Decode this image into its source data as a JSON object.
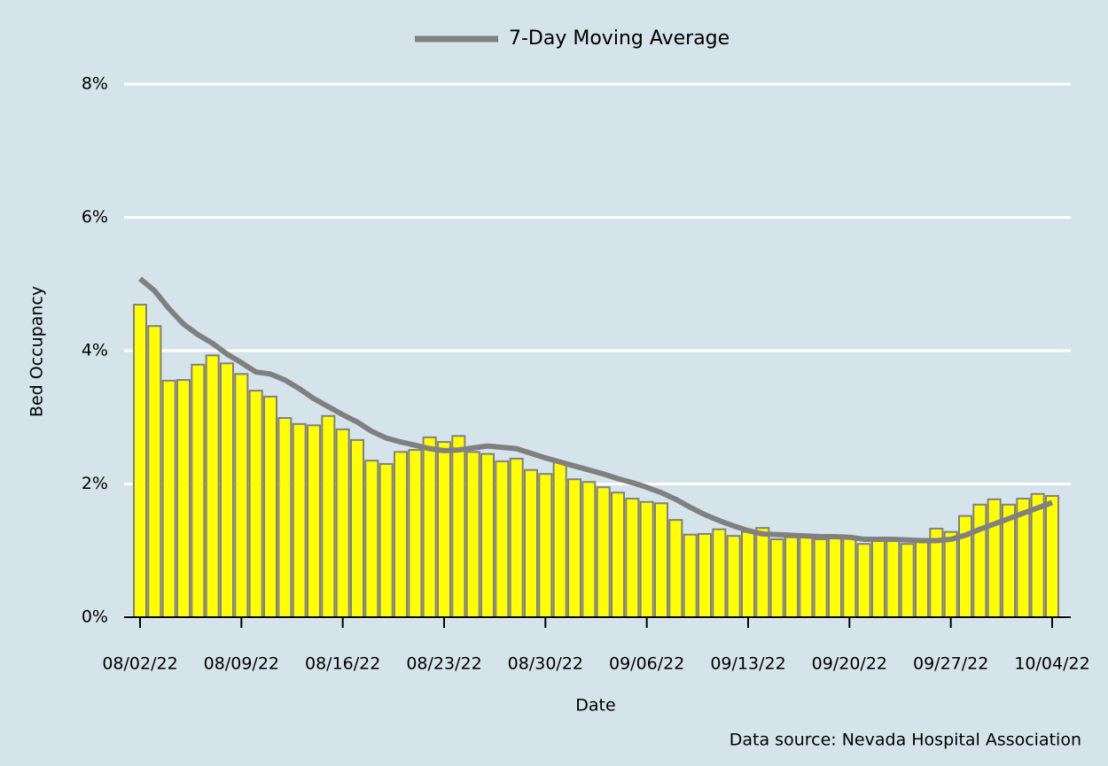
{
  "chart_data": {
    "type": "bar",
    "x_label": "Date",
    "y_label": "Bed Occupancy",
    "source": "Data source: Nevada Hospital Association",
    "x": [
      "08/02/22",
      "08/03/22",
      "08/04/22",
      "08/05/22",
      "08/06/22",
      "08/07/22",
      "08/08/22",
      "08/09/22",
      "08/10/22",
      "08/11/22",
      "08/12/22",
      "08/13/22",
      "08/14/22",
      "08/15/22",
      "08/16/22",
      "08/17/22",
      "08/18/22",
      "08/19/22",
      "08/20/22",
      "08/21/22",
      "08/22/22",
      "08/23/22",
      "08/24/22",
      "08/25/22",
      "08/26/22",
      "08/27/22",
      "08/28/22",
      "08/29/22",
      "08/30/22",
      "08/31/22",
      "09/01/22",
      "09/02/22",
      "09/03/22",
      "09/04/22",
      "09/05/22",
      "09/06/22",
      "09/07/22",
      "09/08/22",
      "09/09/22",
      "09/10/22",
      "09/11/22",
      "09/12/22",
      "09/13/22",
      "09/14/22",
      "09/15/22",
      "09/16/22",
      "09/17/22",
      "09/18/22",
      "09/19/22",
      "09/20/22",
      "09/21/22",
      "09/22/22",
      "09/23/22",
      "09/24/22",
      "09/25/22",
      "09/26/22",
      "09/27/22",
      "09/28/22",
      "09/29/22",
      "09/30/22",
      "10/01/22",
      "10/02/22",
      "10/03/22",
      "10/04/22"
    ],
    "xticks": [
      "08/02/22",
      "08/09/22",
      "08/16/22",
      "08/23/22",
      "08/30/22",
      "09/06/22",
      "09/13/22",
      "09/20/22",
      "09/27/22",
      "10/04/22"
    ],
    "series": [
      {
        "type": "bar",
        "color": "#ffff00",
        "edgecolor": "#808080",
        "values": [
          4.69,
          4.37,
          3.55,
          3.56,
          3.79,
          3.93,
          3.81,
          3.65,
          3.4,
          3.31,
          2.99,
          2.9,
          2.88,
          3.02,
          2.82,
          2.66,
          2.35,
          2.3,
          2.48,
          2.51,
          2.7,
          2.63,
          2.72,
          2.48,
          2.45,
          2.34,
          2.38,
          2.21,
          2.15,
          2.33,
          2.07,
          2.03,
          1.95,
          1.87,
          1.78,
          1.73,
          1.71,
          1.46,
          1.24,
          1.25,
          1.32,
          1.22,
          1.28,
          1.34,
          1.17,
          1.2,
          1.21,
          1.17,
          1.2,
          1.18,
          1.1,
          1.16,
          1.16,
          1.1,
          1.13,
          1.33,
          1.28,
          1.52,
          1.69,
          1.77,
          1.69,
          1.78,
          1.85,
          1.82
        ]
      },
      {
        "type": "line",
        "name": "7-Day Moving Average",
        "color": "#808080",
        "values": [
          5.08,
          4.9,
          4.63,
          4.4,
          4.24,
          4.11,
          3.95,
          3.82,
          3.68,
          3.65,
          3.56,
          3.43,
          3.28,
          3.16,
          3.04,
          2.93,
          2.79,
          2.69,
          2.63,
          2.58,
          2.53,
          2.5,
          2.51,
          2.54,
          2.57,
          2.55,
          2.53,
          2.46,
          2.39,
          2.33,
          2.27,
          2.21,
          2.15,
          2.08,
          2.02,
          1.95,
          1.87,
          1.77,
          1.65,
          1.54,
          1.45,
          1.37,
          1.3,
          1.25,
          1.24,
          1.23,
          1.22,
          1.21,
          1.21,
          1.2,
          1.17,
          1.17,
          1.17,
          1.16,
          1.15,
          1.15,
          1.17,
          1.23,
          1.32,
          1.4,
          1.48,
          1.56,
          1.64,
          1.72
        ]
      }
    ],
    "ylim": [
      0,
      8
    ],
    "yticks": [
      {
        "value": 0,
        "label": "0%"
      },
      {
        "value": 2,
        "label": "2%"
      },
      {
        "value": 4,
        "label": "4%"
      },
      {
        "value": 6,
        "label": "6%"
      },
      {
        "value": 8,
        "label": "8%"
      }
    ],
    "grid": true,
    "legend": "top"
  }
}
